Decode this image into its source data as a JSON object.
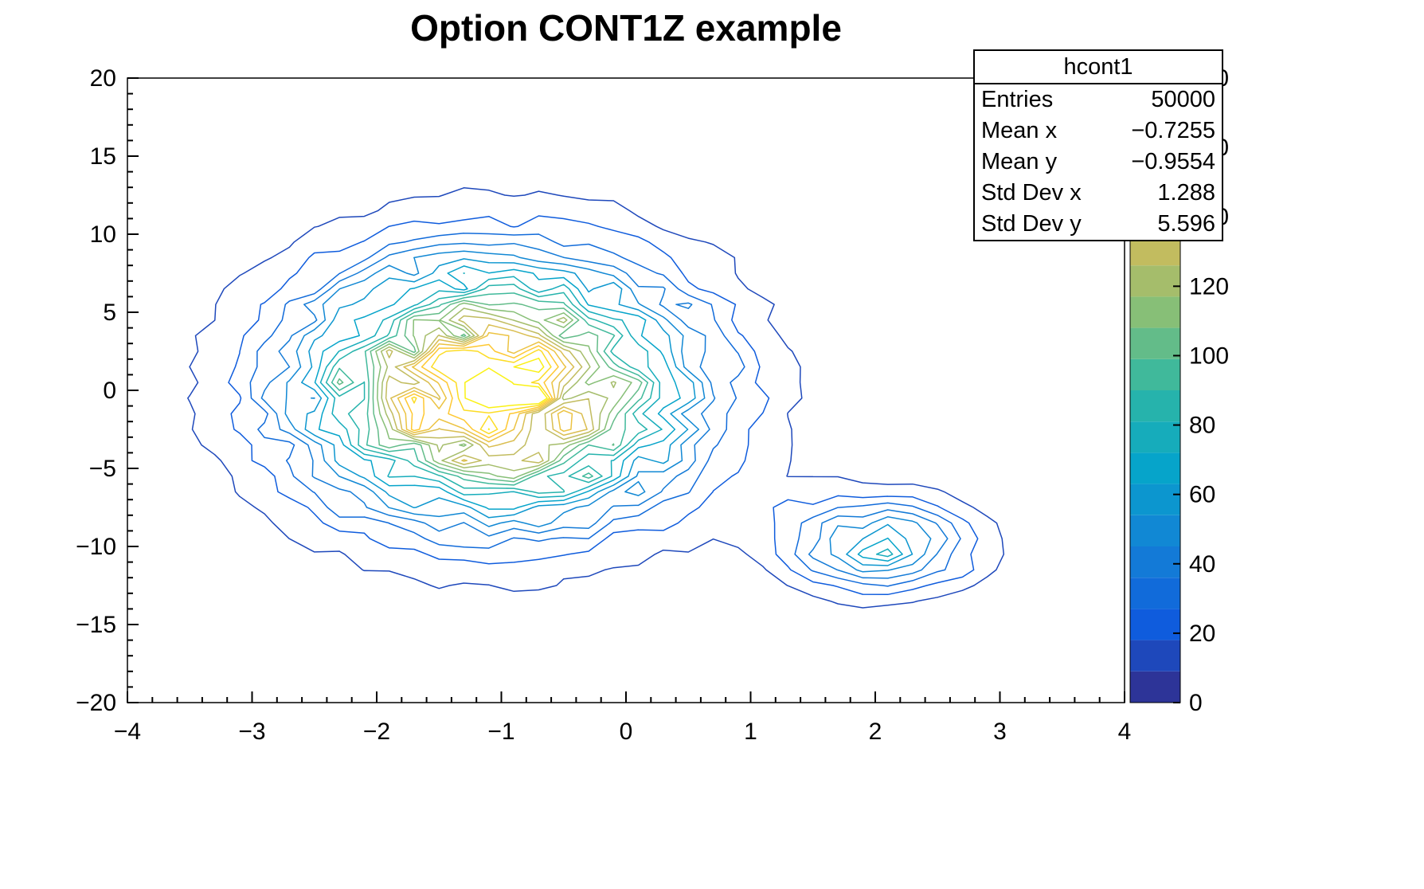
{
  "page": {
    "background": "#ffffff"
  },
  "chart_data": {
    "type": "contour",
    "title": "Option CONT1Z example",
    "histogram_name": "hcont1",
    "n_contours": 20,
    "grid": {
      "nx": 40,
      "ny": 40
    },
    "noise": 0.18,
    "noise_seed": 11,
    "x_axis": {
      "range": [
        -4,
        4
      ],
      "major_step": 1,
      "minor_step": 0.2,
      "ticks": [
        {
          "v": -4,
          "label": "−4"
        },
        {
          "v": -3,
          "label": "−3"
        },
        {
          "v": -2,
          "label": "−2"
        },
        {
          "v": -1,
          "label": "−1"
        },
        {
          "v": 0,
          "label": "0"
        },
        {
          "v": 1,
          "label": "1"
        },
        {
          "v": 2,
          "label": "2"
        },
        {
          "v": 3,
          "label": "3"
        },
        {
          "v": 4,
          "label": "4"
        }
      ]
    },
    "y_axis": {
      "range": [
        -20,
        20
      ],
      "major_step": 5,
      "minor_step": 1,
      "ticks": [
        {
          "v": -20,
          "label": "−20"
        },
        {
          "v": -15,
          "label": "−15"
        },
        {
          "v": -10,
          "label": "−10"
        },
        {
          "v": -5,
          "label": "−5"
        },
        {
          "v": 0,
          "label": "0"
        },
        {
          "v": 5,
          "label": "5"
        },
        {
          "v": 10,
          "label": "10"
        },
        {
          "v": 15,
          "label": "15"
        },
        {
          "v": 20,
          "label": "20"
        }
      ]
    },
    "z_axis": {
      "range": [
        0,
        180
      ],
      "ticks": [
        {
          "v": 0,
          "label": "0"
        },
        {
          "v": 20,
          "label": "20"
        },
        {
          "v": 40,
          "label": "40"
        },
        {
          "v": 60,
          "label": "60"
        },
        {
          "v": 80,
          "label": "80"
        },
        {
          "v": 100,
          "label": "100"
        },
        {
          "v": 120,
          "label": "120"
        },
        {
          "v": 140,
          "label": "140"
        },
        {
          "v": 160,
          "label": "160"
        },
        {
          "v": 180,
          "label": "180"
        }
      ]
    },
    "peaks": [
      {
        "x": -1.05,
        "y": 0.1,
        "sigma_x": 1.0,
        "sigma_y": 5.2,
        "amplitude": 172
      },
      {
        "x": 2.05,
        "y": -10.0,
        "sigma_x": 0.5,
        "sigma_y": 1.9,
        "amplitude": 60
      },
      {
        "x": 1.5,
        "y": -7.2,
        "sigma_x": 0.65,
        "sigma_y": 1.6,
        "amplitude": 6
      }
    ],
    "palette": [
      "#352A87",
      "#0F5CDD",
      "#1481D6",
      "#06A4CA",
      "#2EB7A4",
      "#87BF77",
      "#D1BB59",
      "#FEC832",
      "#F9FB0E"
    ],
    "frame_color": "#000000"
  },
  "stats_box": {
    "title": "hcont1",
    "rows": [
      {
        "label": "Entries",
        "value": "50000"
      },
      {
        "label": "Mean x",
        "value": "−0.7255"
      },
      {
        "label": "Mean y",
        "value": "−0.9554"
      },
      {
        "label": "Std Dev x",
        "value": "1.288"
      },
      {
        "label": "Std Dev y",
        "value": "5.596"
      }
    ]
  }
}
